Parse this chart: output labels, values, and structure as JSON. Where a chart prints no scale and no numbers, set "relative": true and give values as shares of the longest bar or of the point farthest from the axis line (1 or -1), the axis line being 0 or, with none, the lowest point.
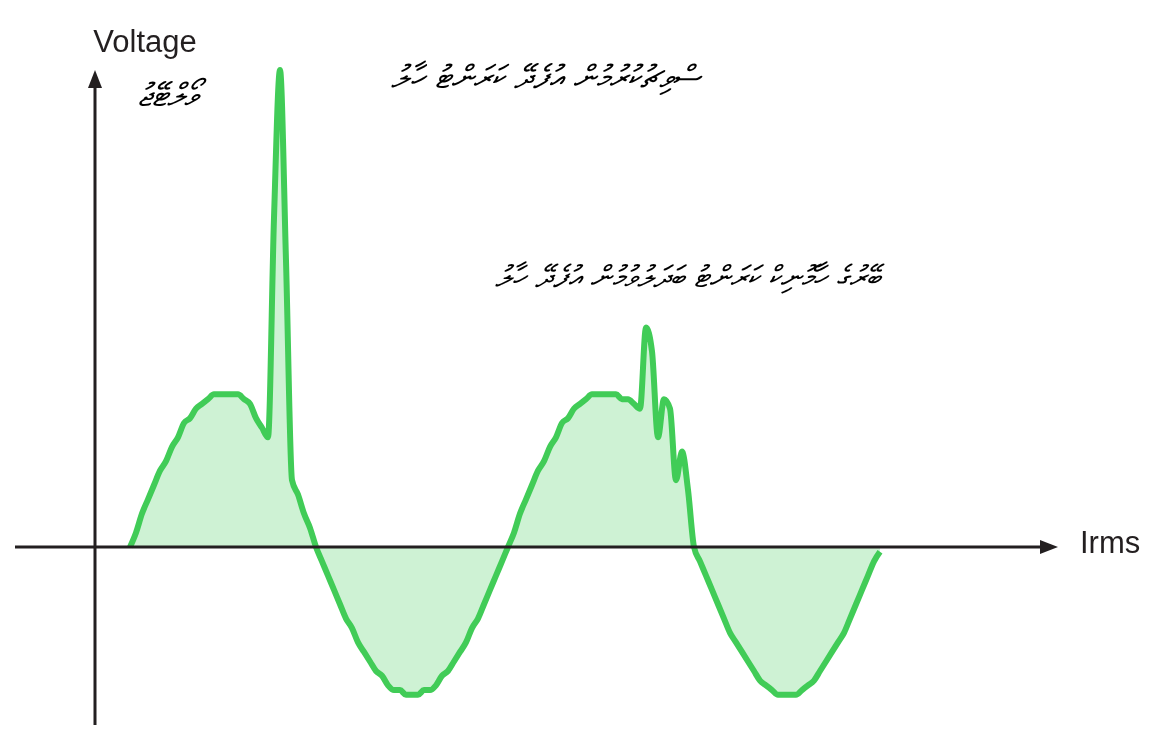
{
  "chart_data": {
    "type": "area",
    "relative": true,
    "ylabel": "Voltage",
    "annotations": [
      "ވޯލްޓޭޖު",
      "ސްވިޗުކުރުމުން އުފެދޭ ކަރަންޓު ހާލު",
      "ބޭރުގެ ހާމޮނިކް ކަރަންޓު ބަދަލުވުމުން އުފެދޭ ހާލު",
      "Irms"
    ],
    "categories": [
      null,
      null,
      null,
      null,
      null,
      null,
      null,
      null,
      null,
      null,
      null,
      null,
      null,
      null,
      null,
      null,
      null,
      null,
      null,
      null,
      null,
      null,
      null,
      null,
      null,
      null,
      null,
      null,
      null,
      null,
      null,
      null,
      null,
      null,
      null,
      null,
      null,
      null,
      null,
      null,
      null,
      null,
      null,
      null,
      null,
      null,
      null,
      null,
      null,
      null,
      null,
      null,
      null,
      null,
      null,
      null,
      null,
      null,
      null,
      null,
      null,
      null,
      null,
      null,
      null,
      null,
      null,
      null,
      null,
      null,
      null,
      null,
      null,
      null,
      null,
      null,
      null,
      null,
      null,
      null,
      null,
      null,
      null,
      null,
      null,
      null,
      null,
      null,
      null,
      null,
      null,
      null,
      null,
      null,
      null,
      null,
      null,
      null,
      null,
      null,
      null,
      null,
      null,
      null,
      null,
      null,
      null,
      null,
      null,
      null,
      null,
      null,
      null,
      null,
      null,
      null,
      null,
      null,
      null,
      null,
      null,
      null,
      null,
      null,
      null,
      null
    ],
    "series": [
      {
        "color": "#41cc57",
        "values": [
          0,
          0.03,
          0.07,
          0.1,
          0.13,
          0.16,
          0.18,
          0.21,
          0.23,
          0.26,
          0.27,
          0.29,
          0.3,
          0.31,
          0.32,
          0.32,
          0.32,
          0.32,
          0.32,
          0.31,
          0.3,
          0.27,
          0.25,
          0.23,
          0.69,
          1,
          0.6,
          0.14,
          0.11,
          0.07,
          0.04,
          0,
          -0.03,
          -0.06,
          -0.09,
          -0.12,
          -0.15,
          -0.17,
          -0.2,
          -0.22,
          -0.24,
          -0.26,
          -0.27,
          -0.29,
          -0.3,
          -0.3,
          -0.31,
          -0.31,
          -0.31,
          -0.3,
          -0.3,
          -0.29,
          -0.27,
          -0.26,
          -0.24,
          -0.22,
          -0.2,
          -0.17,
          -0.15,
          -0.12,
          -0.09,
          -0.06,
          -0.03,
          0,
          0.03,
          0.07,
          0.1,
          0.13,
          0.16,
          0.18,
          0.21,
          0.23,
          0.26,
          0.27,
          0.29,
          0.3,
          0.31,
          0.32,
          0.32,
          0.32,
          0.32,
          0.32,
          0.31,
          0.31,
          0.3,
          0.29,
          0.46,
          0.41,
          0.23,
          0.31,
          0.29,
          0.14,
          0.2,
          0.12,
          0,
          -0.03,
          -0.06,
          -0.09,
          -0.12,
          -0.15,
          -0.18,
          -0.2,
          -0.22,
          -0.24,
          -0.26,
          -0.28,
          -0.29,
          -0.3,
          -0.31,
          -0.31,
          -0.31,
          -0.31,
          -0.3,
          -0.29,
          -0.28,
          -0.26,
          -0.24,
          -0.22,
          -0.2,
          -0.18,
          -0.15,
          -0.12,
          -0.09,
          -0.06,
          -0.03,
          -0.01
        ]
      }
    ]
  }
}
